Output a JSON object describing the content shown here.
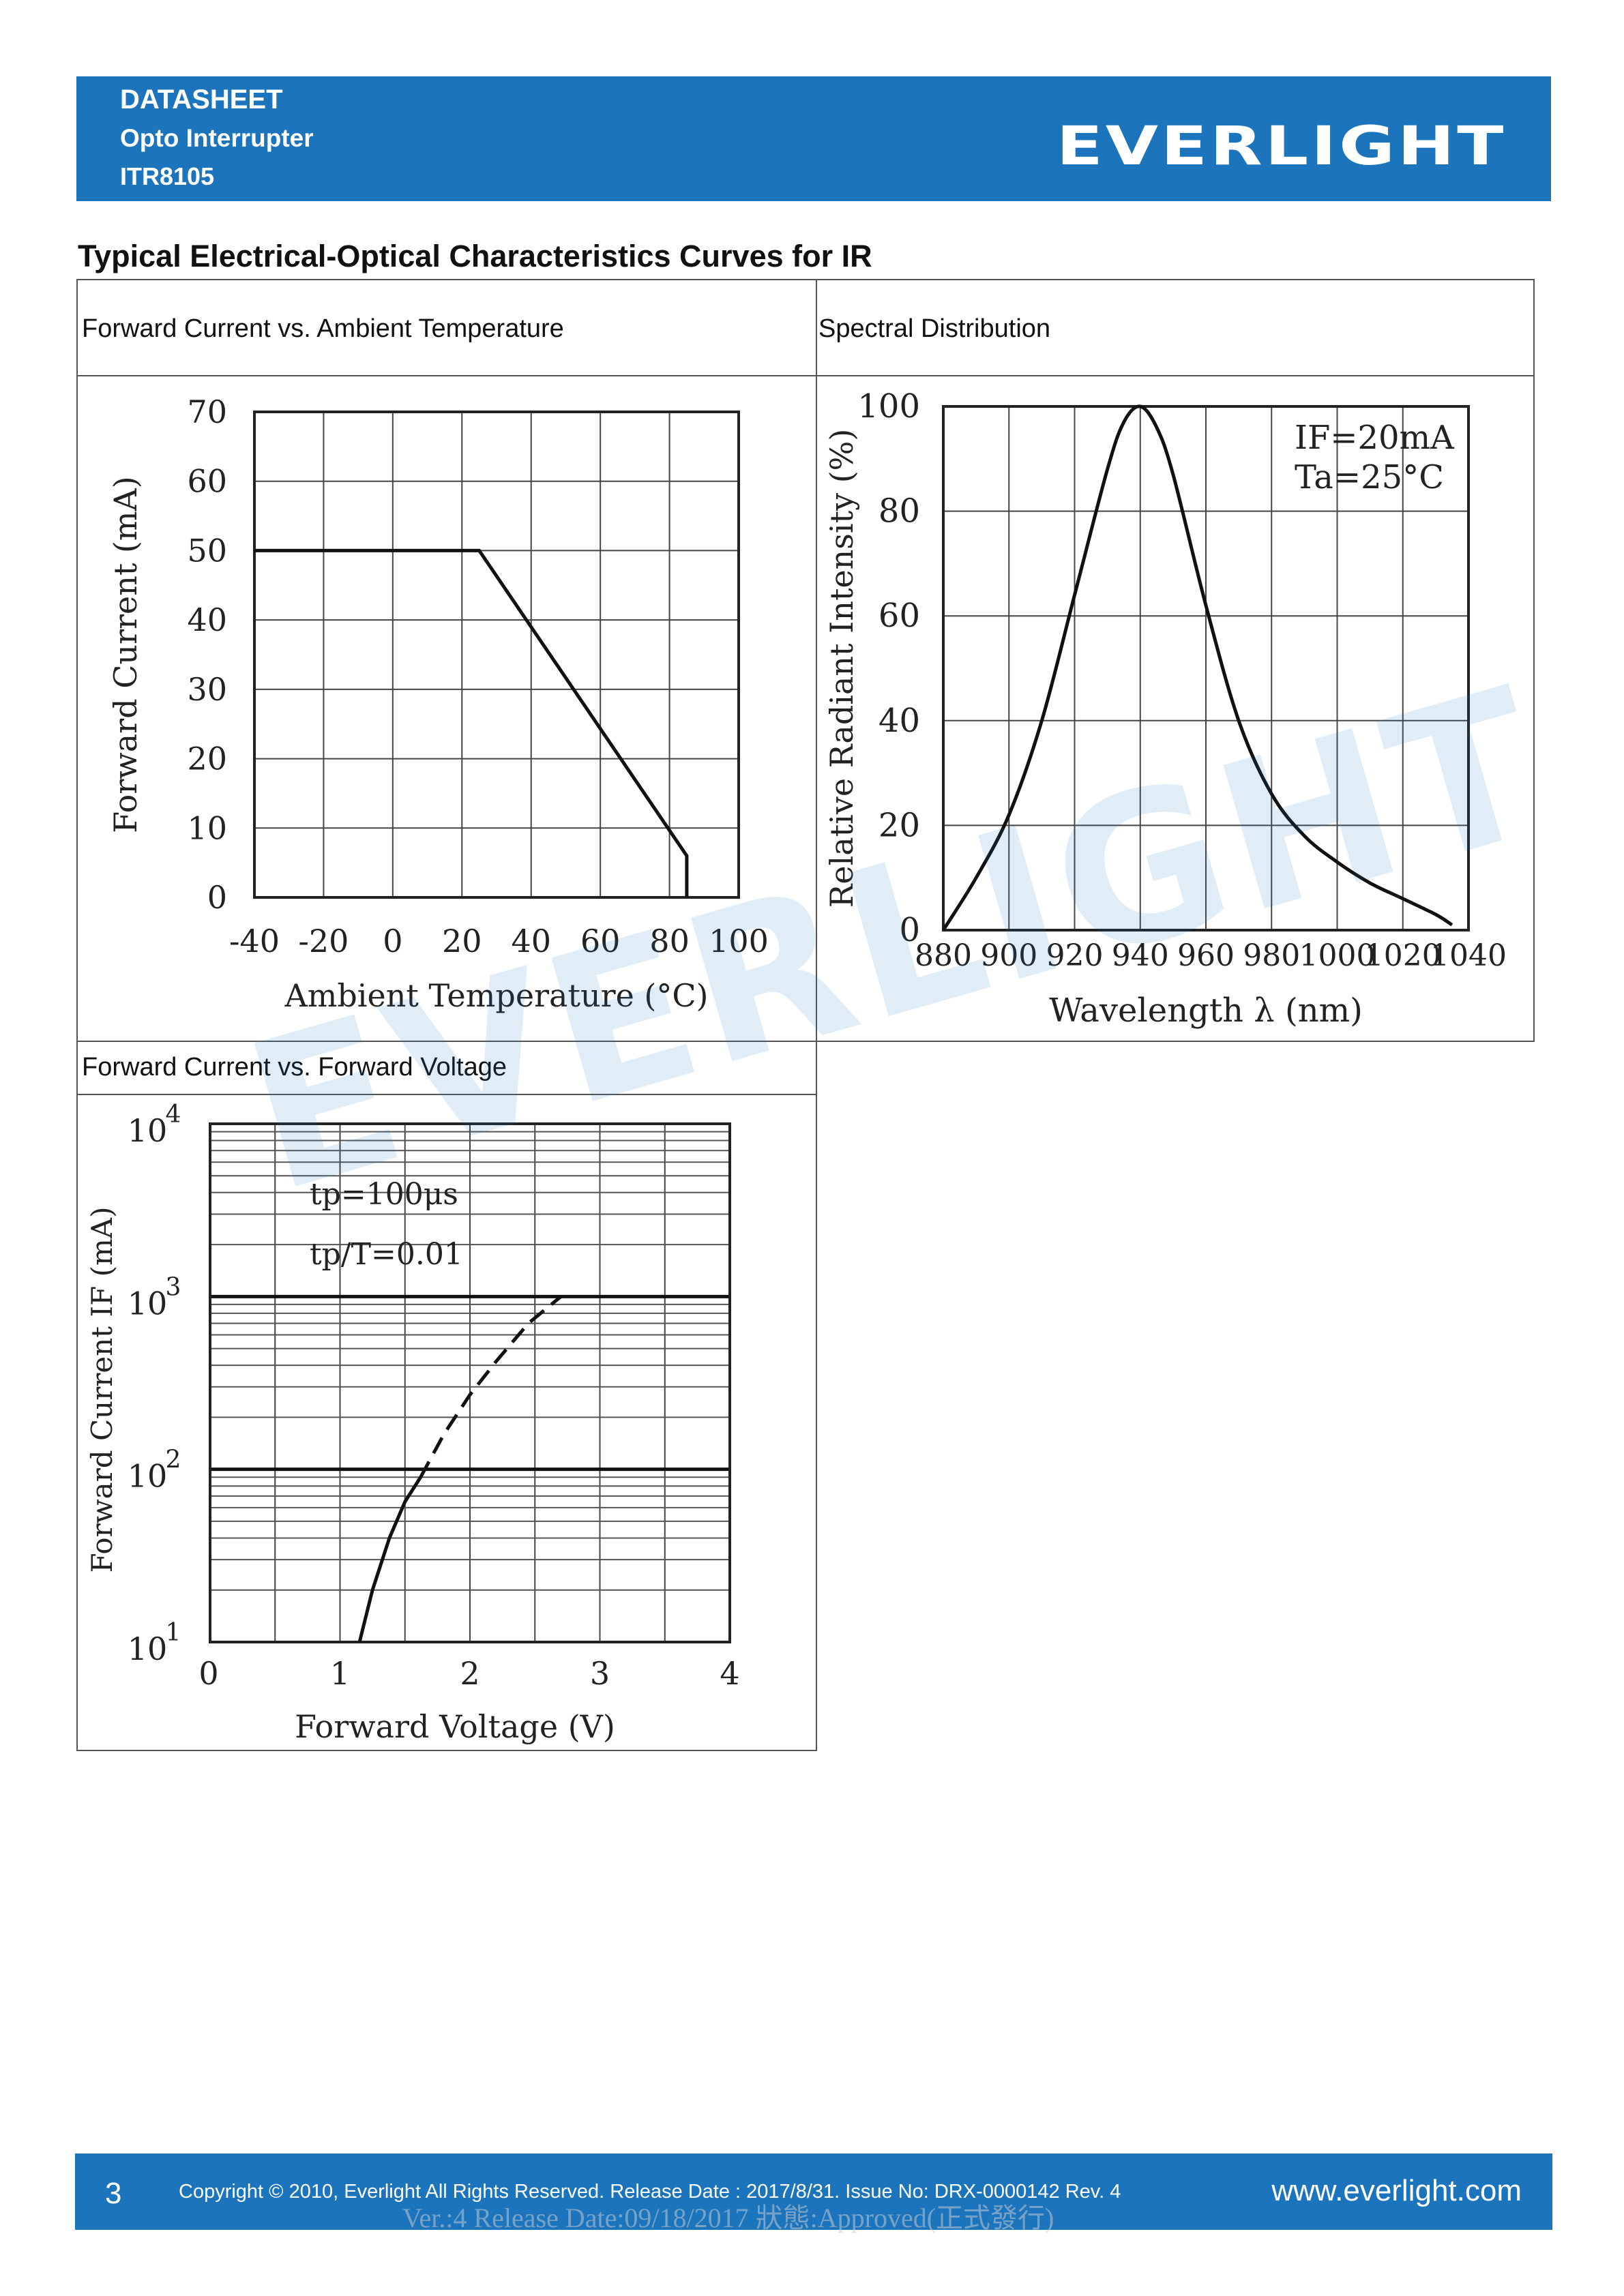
{
  "header": {
    "line1": "DATASHEET",
    "line2": "Opto Interrupter",
    "line3": "ITR8105",
    "logo": "EVERLIGHT",
    "bg_color": "#1c75bc"
  },
  "section_title": "Typical Electrical-Optical Characteristics Curves for IR",
  "watermark": "EVERLIGHT",
  "panels": {
    "p1_caption": "Forward Current vs. Ambient Temperature",
    "p2_caption": "Spectral Distribution",
    "p3_caption": "Forward Current vs. Forward Voltage"
  },
  "chart_data": [
    {
      "type": "line",
      "xlabel": "Ambient Temperature (°C)",
      "ylabel": "Forward Current (mA)",
      "xlim": [
        -40,
        100
      ],
      "ylim": [
        0,
        70
      ],
      "x_ticks": [
        "-40",
        "-20",
        "0",
        "20",
        "40",
        "60",
        "80",
        "100"
      ],
      "y_ticks": [
        "0",
        "10",
        "20",
        "30",
        "40",
        "50",
        "60",
        "70"
      ],
      "grid": true,
      "series": [
        {
          "x": [
            -40,
            25,
            85,
            85
          ],
          "y": [
            50,
            50,
            6,
            0
          ]
        }
      ]
    },
    {
      "type": "line",
      "xlabel": "Wavelength λ (nm)",
      "ylabel": "Relative Radiant Intensity (%)",
      "xlim": [
        880,
        1040
      ],
      "ylim": [
        0,
        100
      ],
      "x_ticks": [
        "880",
        "900",
        "920",
        "940",
        "960",
        "980",
        "1000",
        "1020",
        "1040"
      ],
      "y_ticks": [
        "0",
        "20",
        "40",
        "60",
        "80",
        "100"
      ],
      "annotation_lines": [
        "IF=20mA",
        "Ta=25°C"
      ],
      "grid": true,
      "series": [
        {
          "x": [
            880,
            890,
            900,
            910,
            920,
            930,
            935,
            940,
            945,
            950,
            960,
            970,
            980,
            990,
            1000,
            1010,
            1020,
            1030,
            1035
          ],
          "y": [
            0,
            10,
            22,
            40,
            64,
            88,
            97,
            100,
            96,
            87,
            62,
            40,
            26,
            18,
            13,
            9,
            6,
            3,
            1
          ]
        }
      ]
    },
    {
      "type": "line",
      "xlabel": "Forward Voltage (V)",
      "ylabel": "Forward Current IF (mA)",
      "xlim": [
        0,
        4
      ],
      "ylim": [
        10,
        10000
      ],
      "y_scale": "log",
      "x_ticks": [
        "0",
        "1",
        "2",
        "3",
        "4"
      ],
      "y_ticks": [
        "10",
        "10",
        "10",
        "10"
      ],
      "y_tick_exponents": [
        "1",
        "2",
        "3",
        "4"
      ],
      "annotation_lines": [
        "tp=100μs",
        "tp/T=0.01"
      ],
      "grid": true,
      "series": [
        {
          "style": "solid",
          "x": [
            1.15,
            1.25,
            1.38,
            1.5,
            1.62
          ],
          "y": [
            10,
            20,
            40,
            65,
            90
          ]
        },
        {
          "style": "dashed",
          "x": [
            1.62,
            1.8,
            2.0,
            2.2,
            2.45,
            2.7
          ],
          "y": [
            90,
            160,
            270,
            420,
            700,
            1000
          ]
        }
      ]
    }
  ],
  "footer": {
    "page_number": "3",
    "copyright": "Copyright © 2010, Everlight All Rights Reserved. Release Date : 2017/8/31. Issue No: DRX-0000142   Rev. 4",
    "website": "www.everlight.com",
    "ghost_text": "Ver.:4     Release Date:09/18/2017     狀態:Approved(正式發行)"
  }
}
